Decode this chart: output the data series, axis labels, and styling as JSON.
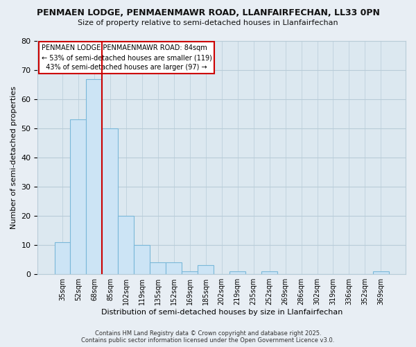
{
  "title1": "PENMAEN LODGE, PENMAENMAWR ROAD, LLANFAIRFECHAN, LL33 0PN",
  "title2": "Size of property relative to semi-detached houses in Llanfairfechan",
  "xlabel": "Distribution of semi-detached houses by size in Llanfairfechan",
  "ylabel": "Number of semi-detached properties",
  "bar_labels": [
    "35sqm",
    "52sqm",
    "68sqm",
    "85sqm",
    "102sqm",
    "119sqm",
    "135sqm",
    "152sqm",
    "169sqm",
    "185sqm",
    "202sqm",
    "219sqm",
    "235sqm",
    "252sqm",
    "269sqm",
    "286sqm",
    "302sqm",
    "319sqm",
    "336sqm",
    "352sqm",
    "369sqm"
  ],
  "bar_values": [
    11,
    53,
    67,
    50,
    20,
    10,
    4,
    4,
    1,
    3,
    0,
    1,
    0,
    1,
    0,
    0,
    0,
    0,
    0,
    0,
    1
  ],
  "bar_color": "#cce4f5",
  "bar_edge_color": "#7ab8d9",
  "vline_color": "#cc0000",
  "ylim": [
    0,
    80
  ],
  "yticks": [
    0,
    10,
    20,
    30,
    40,
    50,
    60,
    70,
    80
  ],
  "annotation_title": "PENMAEN LODGE PENMAENMAWR ROAD: 84sqm",
  "annotation_line1": "← 53% of semi-detached houses are smaller (119)",
  "annotation_line2": "  43% of semi-detached houses are larger (97) →",
  "annotation_box_color": "#ffffff",
  "annotation_box_edge": "#cc0000",
  "footer1": "Contains HM Land Registry data © Crown copyright and database right 2025.",
  "footer2": "Contains public sector information licensed under the Open Government Licence v3.0.",
  "bg_color": "#e8eef4",
  "plot_bg_color": "#dce8f0",
  "grid_color": "#b8ccd8"
}
